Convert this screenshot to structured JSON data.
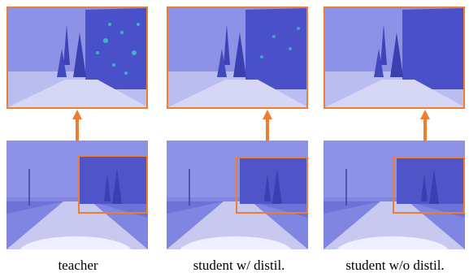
{
  "panels": [
    {
      "caption": "teacher"
    },
    {
      "caption": "student w/ distil."
    },
    {
      "caption": "student w/o distil."
    }
  ],
  "colors": {
    "highlight_box": "#ed7d31",
    "tint": "#5b63d6",
    "sky": "#8d92e6",
    "snow": "#c7c9f0",
    "hot_spots": "#3fd4c8"
  }
}
